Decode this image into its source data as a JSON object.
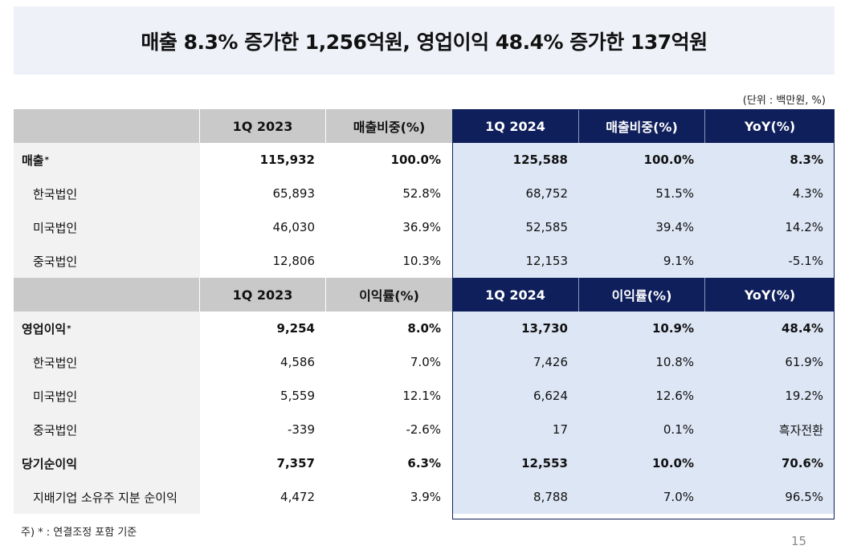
{
  "title": "매출 8.3% 증가한 1,256억원, 영업이익 48.4% 증가한 137억원",
  "unit": "(단위 : 백만원, %)",
  "sales_header": [
    "",
    "1Q 2023",
    "매출비중(%)",
    "1Q 2024",
    "매출비중(%)",
    "YoY(%)"
  ],
  "sales_rows": [
    {
      "label": "매출",
      "mark": "*",
      "bold": true,
      "v": [
        "115,932",
        "100.0%",
        "125,588",
        "100.0%",
        "8.3%"
      ]
    },
    {
      "label": "한국법인",
      "mark": "",
      "bold": false,
      "v": [
        "65,893",
        "52.8%",
        "68,752",
        "51.5%",
        "4.3%"
      ]
    },
    {
      "label": "미국법인",
      "mark": "",
      "bold": false,
      "v": [
        "46,030",
        "36.9%",
        "52,585",
        "39.4%",
        "14.2%"
      ]
    },
    {
      "label": "중국법인",
      "mark": "",
      "bold": false,
      "v": [
        "12,806",
        "10.3%",
        "12,153",
        "9.1%",
        "-5.1%"
      ]
    }
  ],
  "profit_header": [
    "",
    "1Q 2023",
    "이익률(%)",
    "1Q 2024",
    "이익률(%)",
    "YoY(%)"
  ],
  "profit_rows": [
    {
      "label": "영업이익",
      "mark": "*",
      "bold": true,
      "v": [
        "9,254",
        "8.0%",
        "13,730",
        "10.9%",
        "48.4%"
      ]
    },
    {
      "label": "한국법인",
      "mark": "",
      "bold": false,
      "v": [
        "4,586",
        "7.0%",
        "7,426",
        "10.8%",
        "61.9%"
      ]
    },
    {
      "label": "미국법인",
      "mark": "",
      "bold": false,
      "v": [
        "5,559",
        "12.1%",
        "6,624",
        "12.6%",
        "19.2%"
      ]
    },
    {
      "label": "중국법인",
      "mark": "",
      "bold": false,
      "v": [
        "-339",
        "-2.6%",
        "17",
        "0.1%",
        "흑자전환"
      ]
    },
    {
      "label": "당기순이익",
      "mark": "",
      "bold": true,
      "v": [
        "7,357",
        "6.3%",
        "12,553",
        "10.0%",
        "70.6%"
      ]
    },
    {
      "label": "지배기업 소유주 지분 순이익",
      "mark": "",
      "bold": false,
      "v": [
        "4,472",
        "3.9%",
        "8,788",
        "7.0%",
        "96.5%"
      ]
    }
  ],
  "footnote": "주) * : 연결조정 포함 기준",
  "page_number": "15",
  "colors": {
    "navy": "#0e1f5b",
    "highlight": "#dde6f5",
    "gray_header": "#c9c9c9",
    "title_bg": "#eef1f8"
  }
}
